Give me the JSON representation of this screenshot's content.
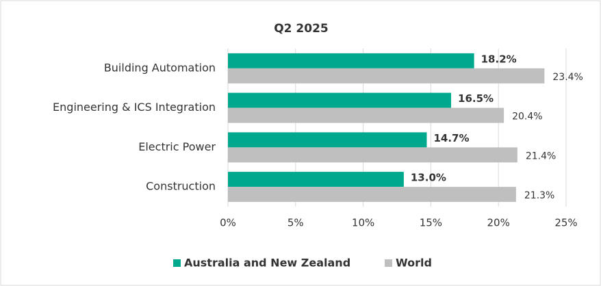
{
  "chart_data": {
    "type": "bar",
    "orientation": "horizontal",
    "title": "Q2 2025",
    "categories": [
      "Building Automation",
      "Engineering & ICS Integration",
      "Electric Power",
      "Construction"
    ],
    "series": [
      {
        "name": "Australia and New Zealand",
        "color": "#00a88e",
        "values": [
          18.2,
          16.5,
          14.7,
          13.0
        ],
        "value_labels": [
          "18.2%",
          "16.5%",
          "14.7%",
          "13.0%"
        ]
      },
      {
        "name": "World",
        "color": "#bfbfbf",
        "values": [
          23.4,
          20.4,
          21.4,
          21.3
        ],
        "value_labels": [
          "23.4%",
          "20.4%",
          "21.4%",
          "21.3%"
        ]
      }
    ],
    "xlim": [
      0,
      25
    ],
    "xticks": [
      {
        "value": 0,
        "label": "0%"
      },
      {
        "value": 5,
        "label": "5%"
      },
      {
        "value": 10,
        "label": "10%"
      },
      {
        "value": 15,
        "label": "15%"
      },
      {
        "value": 20,
        "label": "20%"
      },
      {
        "value": 25,
        "label": "25%"
      }
    ],
    "grid": true,
    "legend": "bottom"
  }
}
